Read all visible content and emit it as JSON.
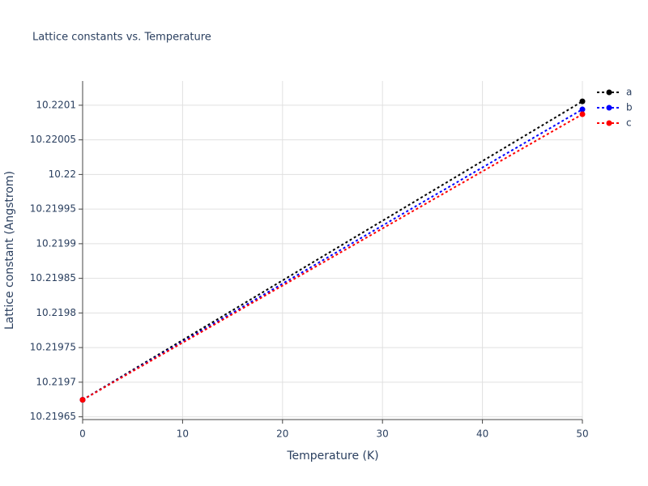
{
  "chart_data": {
    "type": "line",
    "title": "Lattice constants vs. Temperature",
    "x_label": "Temperature (K)",
    "y_label": "Lattice constant (Angstrom)",
    "x": [
      0,
      50
    ],
    "series": [
      {
        "name": "a",
        "color": "#000000",
        "values": [
          10.2196745,
          10.2201056
        ]
      },
      {
        "name": "b",
        "color": "#0000ff",
        "values": [
          10.2196745,
          10.220094
        ]
      },
      {
        "name": "c",
        "color": "#ff0000",
        "values": [
          10.2196745,
          10.220087
        ]
      }
    ],
    "xlim": [
      0,
      50
    ],
    "xticks": [
      0,
      10,
      20,
      30,
      40,
      50
    ],
    "ylim": [
      10.219646,
      10.220135
    ],
    "yticks": [
      10.21965,
      10.2197,
      10.21975,
      10.2198,
      10.21985,
      10.2199,
      10.21995,
      10.22,
      10.22005,
      10.2201
    ],
    "grid": true,
    "legend": "right"
  }
}
